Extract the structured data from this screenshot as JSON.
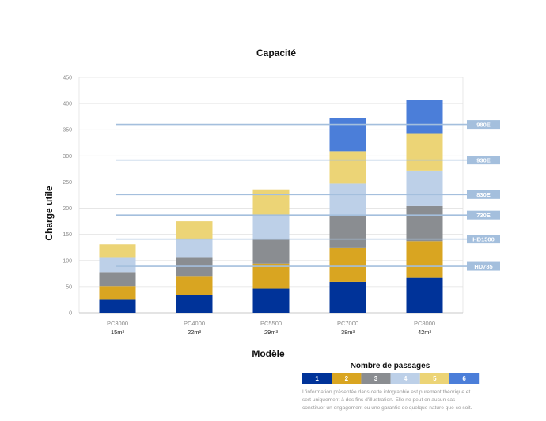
{
  "chart_data": {
    "type": "bar",
    "stacked": true,
    "title": "Capacité",
    "xlabel": "Modèle",
    "ylabel": "Charge utile",
    "ylim": [
      0,
      450
    ],
    "yticks": [
      0,
      50,
      100,
      150,
      200,
      250,
      300,
      350,
      400,
      450
    ],
    "grid": true,
    "categories": [
      "PC3000",
      "PC4000",
      "PC5500",
      "PC7000",
      "PC8000"
    ],
    "category_sublabels": [
      "15m³",
      "22m³",
      "29m³",
      "38m³",
      "42m³"
    ],
    "series": [
      {
        "name": "1",
        "color": "#003399",
        "values": [
          25,
          34,
          46,
          59,
          67
        ]
      },
      {
        "name": "2",
        "color": "#D9A521",
        "values": [
          26,
          35,
          48,
          65,
          70
        ]
      },
      {
        "name": "3",
        "color": "#8A8D91",
        "values": [
          27,
          36,
          46,
          62,
          67
        ]
      },
      {
        "name": "4",
        "color": "#BDD0E8",
        "values": [
          27,
          35,
          46,
          61,
          68
        ]
      },
      {
        "name": "5",
        "color": "#ECD476",
        "values": [
          26,
          35,
          50,
          62,
          70
        ]
      },
      {
        "name": "6",
        "color": "#4B7ED9",
        "values": [
          0,
          0,
          0,
          63,
          65
        ]
      }
    ],
    "reference_lines": [
      {
        "label": "980E",
        "value": 360
      },
      {
        "label": "930E",
        "value": 292
      },
      {
        "label": "830E",
        "value": 226
      },
      {
        "label": "730E",
        "value": 187
      },
      {
        "label": "HD1500",
        "value": 141
      },
      {
        "label": "HD785",
        "value": 89
      }
    ],
    "reference_color": "#A4BFDD",
    "legend": {
      "title": "Nombre de passages",
      "position": "bottom-right"
    }
  },
  "disclaimer": "L'information présentée dans cette infographie est purement théorique et sert uniquement à des fins d'illustration. Elle ne peut en aucun cas constituer un engagement ou une garantie de quelque nature que ce soit."
}
